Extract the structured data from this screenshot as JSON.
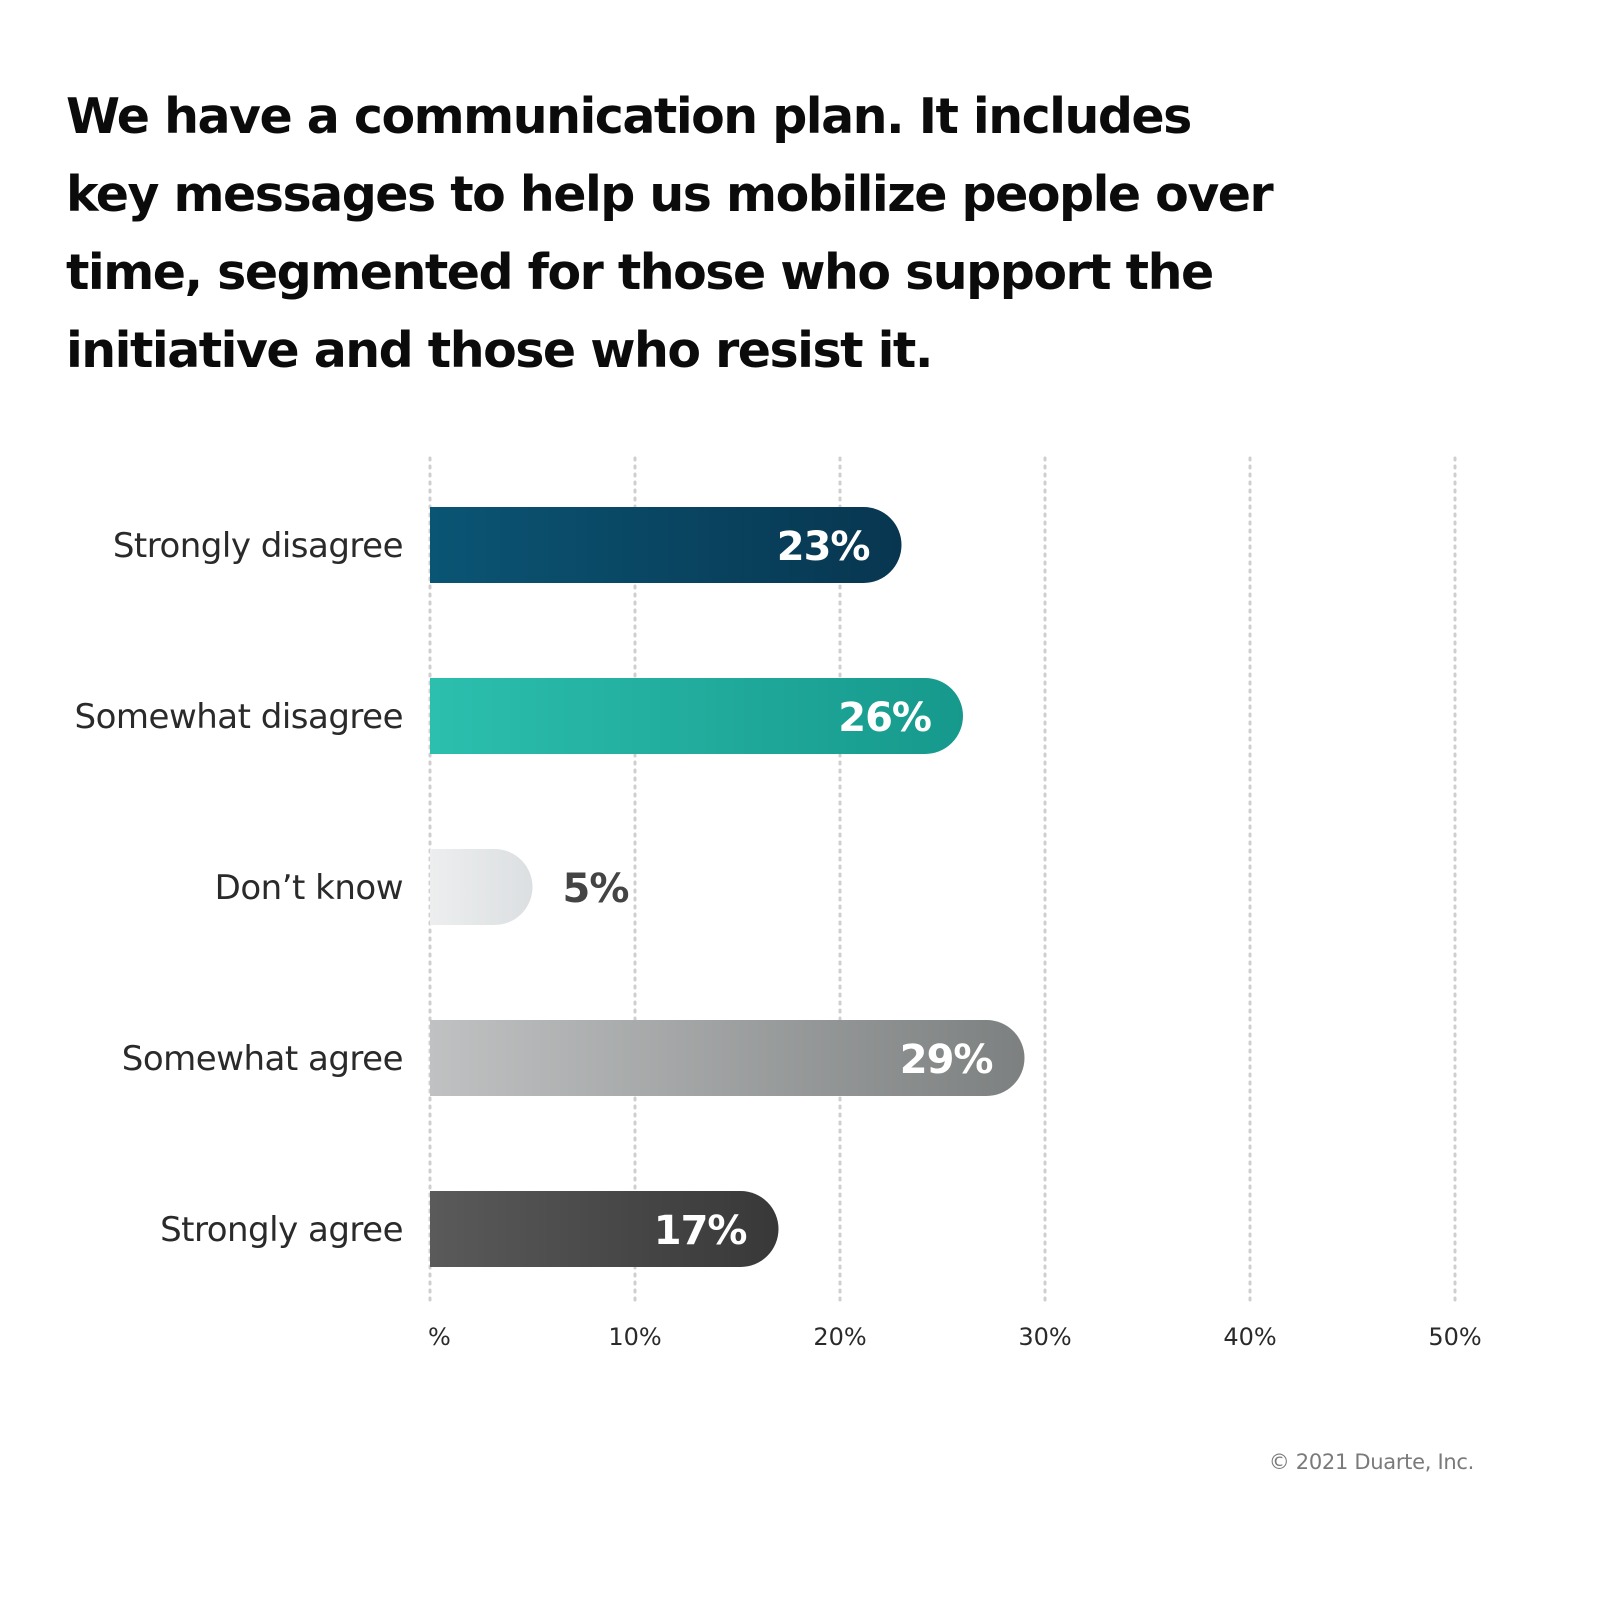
{
  "chart_data": {
    "type": "bar",
    "orientation": "horizontal",
    "title": "We have a communication plan. It includes key messages to help us mobilize people over time, segmented for those who support the initiative and those who resist it.",
    "categories": [
      "Strongly disagree",
      "Somewhat disagree",
      "Don’t know",
      "Somewhat agree",
      "Strongly agree"
    ],
    "values": [
      23,
      26,
      5,
      29,
      17
    ],
    "value_labels": [
      "23%",
      "26%",
      "5%",
      "29%",
      "17%"
    ],
    "colors": [
      "#0a4f6e",
      "#22a99b",
      "#e4e6e8",
      "#a6a9aa",
      "#4a4a4a"
    ],
    "xlim": [
      0,
      50
    ],
    "x_ticks": [
      0,
      10,
      20,
      30,
      40,
      50
    ],
    "x_tick_labels": [
      "%",
      "10%",
      "20%",
      "30%",
      "40%",
      "50%"
    ],
    "grid": true,
    "legend": "none"
  },
  "footer": {
    "copyright": "© 2021 Duarte, Inc."
  }
}
